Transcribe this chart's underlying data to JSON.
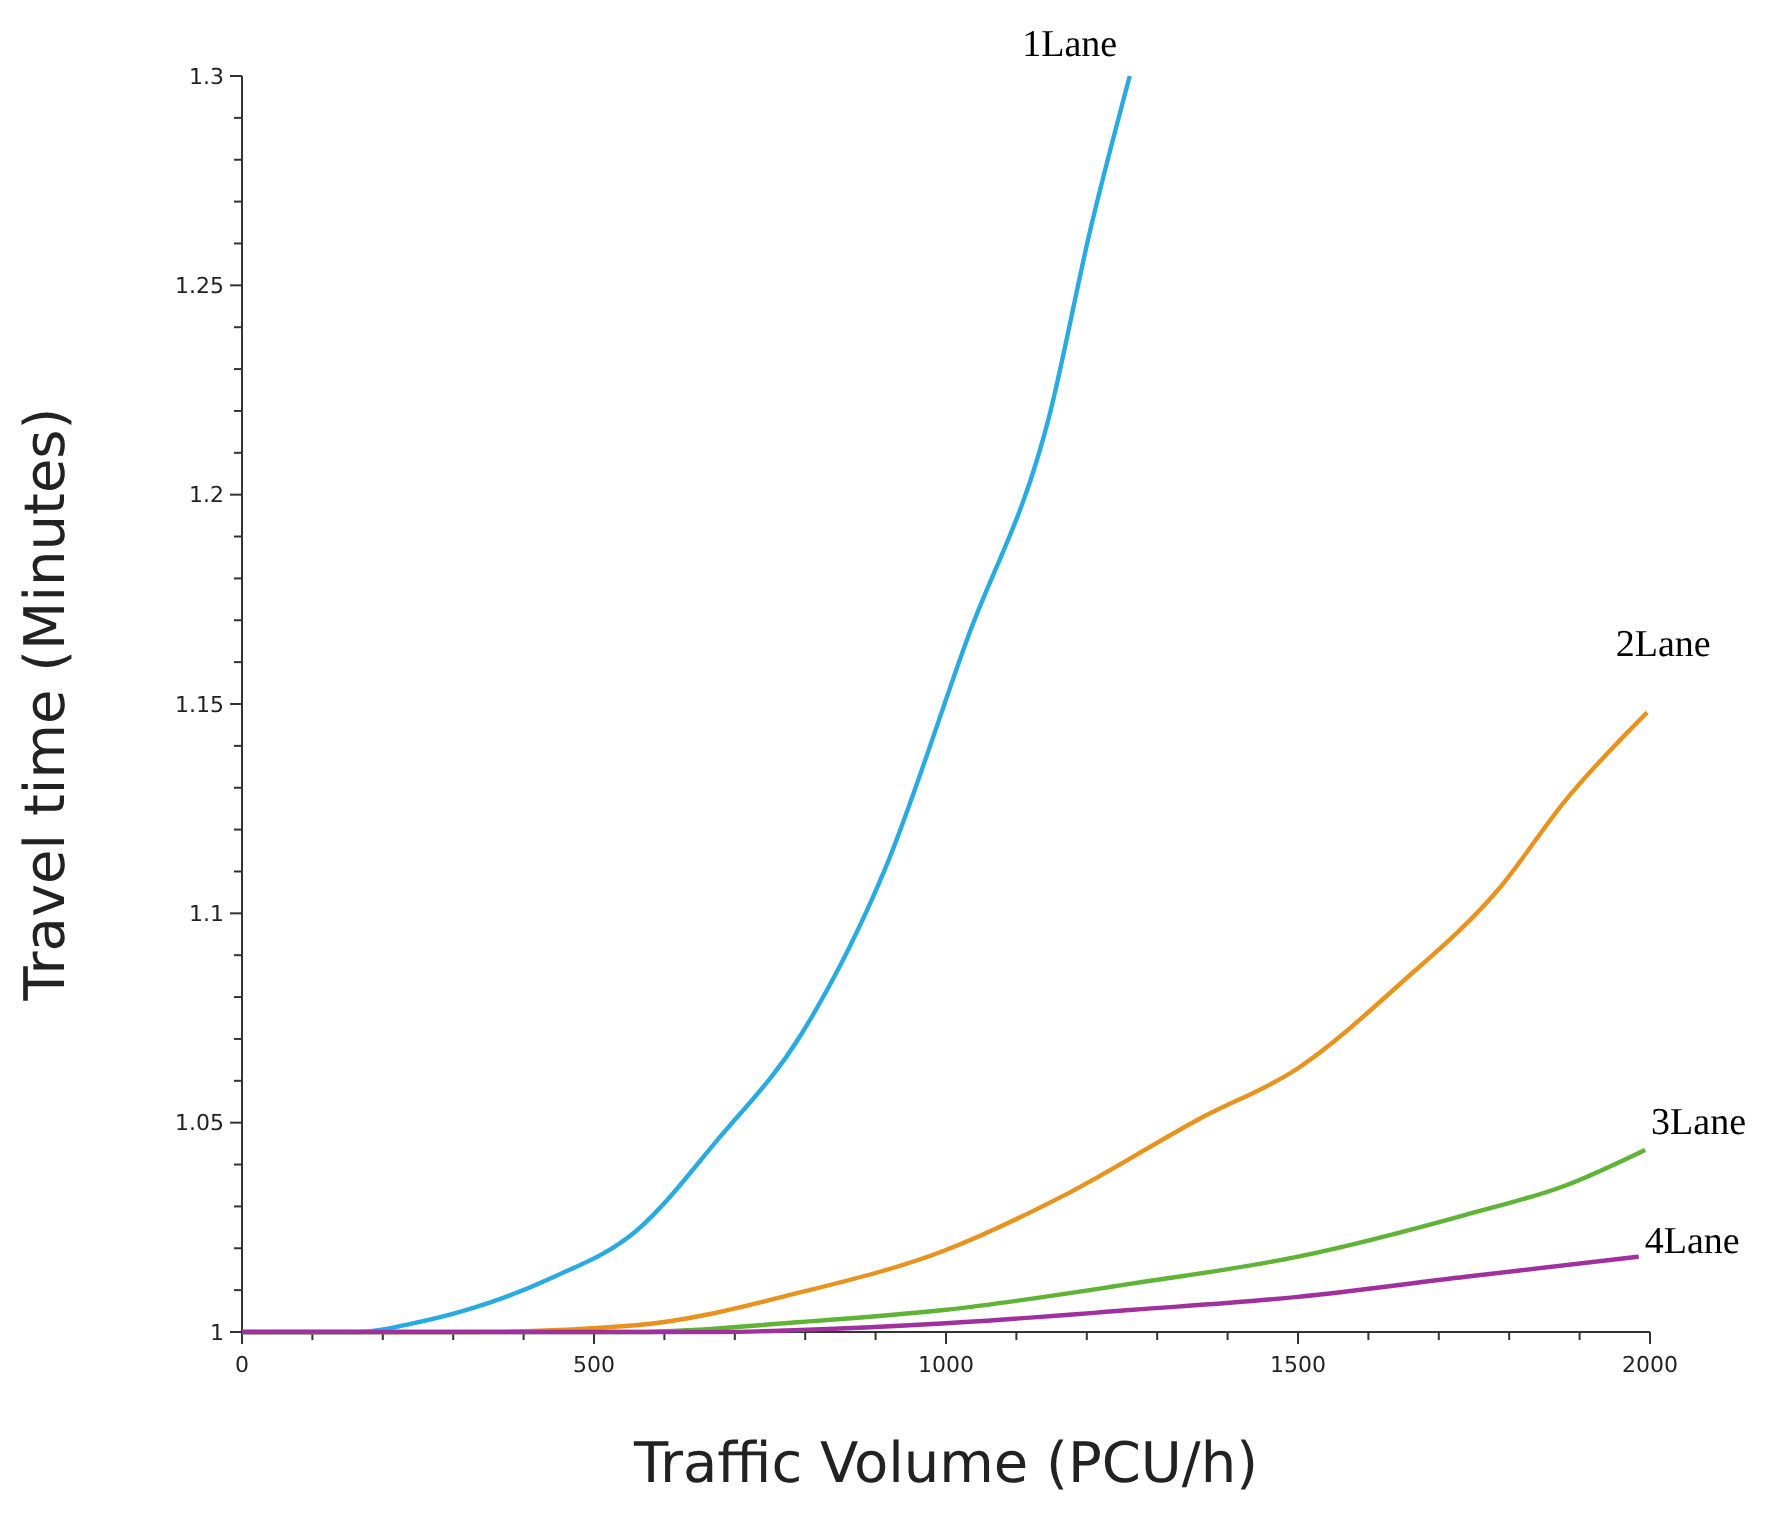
{
  "chart_data": {
    "type": "line",
    "xlabel": "Traffic Volume (PCU/h)",
    "ylabel": "Travel time (Minutes)",
    "xlim": [
      0,
      2000
    ],
    "ylim": [
      1,
      1.3
    ],
    "xticks": [
      0,
      {
        "value": 100,
        "label": null
      },
      {
        "value": 200,
        "label": null
      },
      {
        "value": 300,
        "label": null
      },
      {
        "value": 400,
        "label": null
      },
      500,
      {
        "value": 600,
        "label": null
      },
      {
        "value": 700,
        "label": null
      },
      {
        "value": 800,
        "label": null
      },
      {
        "value": 900,
        "label": null
      },
      1000,
      {
        "value": 1100,
        "label": null
      },
      {
        "value": 1200,
        "label": null
      },
      {
        "value": 1300,
        "label": null
      },
      {
        "value": 1400,
        "label": null
      },
      1500,
      {
        "value": 1600,
        "label": null
      },
      {
        "value": 1700,
        "label": null
      },
      {
        "value": 1800,
        "label": null
      },
      {
        "value": 1900,
        "label": null
      },
      2000
    ],
    "yticks": [
      1,
      {
        "value": 1.01,
        "label": null
      },
      {
        "value": 1.02,
        "label": null
      },
      {
        "value": 1.03,
        "label": null
      },
      {
        "value": 1.04,
        "label": null
      },
      1.05,
      {
        "value": 1.06,
        "label": null
      },
      {
        "value": 1.07,
        "label": null
      },
      {
        "value": 1.08,
        "label": null
      },
      {
        "value": 1.09,
        "label": null
      },
      1.1,
      {
        "value": 1.11,
        "label": null
      },
      {
        "value": 1.12,
        "label": null
      },
      {
        "value": 1.13,
        "label": null
      },
      {
        "value": 1.14,
        "label": null
      },
      1.15,
      {
        "value": 1.16,
        "label": null
      },
      {
        "value": 1.17,
        "label": null
      },
      {
        "value": 1.18,
        "label": null
      },
      {
        "value": 1.19,
        "label": null
      },
      1.2,
      {
        "value": 1.21,
        "label": null
      },
      {
        "value": 1.22,
        "label": null
      },
      {
        "value": 1.23,
        "label": null
      },
      {
        "value": 1.24,
        "label": null
      },
      1.25,
      {
        "value": 1.26,
        "label": null
      },
      {
        "value": 1.27,
        "label": null
      },
      {
        "value": 1.28,
        "label": null
      },
      {
        "value": 1.29,
        "label": null
      },
      1.3
    ],
    "grid": false,
    "marker": "none",
    "line_style": "solid",
    "series": [
      {
        "name": "1Lane",
        "color": "#29abe2",
        "x": [
          0,
          165,
          241,
          324,
          441,
          559,
          676,
          794,
          912,
          1029,
          1147,
          1206,
          1261
        ],
        "values": [
          1,
          1,
          1.002,
          1.0055,
          1.013,
          1.024,
          1.046,
          1.071,
          1.11,
          1.165,
          1.219,
          1.264,
          1.3
        ]
      },
      {
        "name": "2Lane",
        "color": "#e8931e",
        "x": [
          0,
          324,
          559,
          794,
          1000,
          1172,
          1361,
          1500,
          1644,
          1786,
          1880,
          1996
        ],
        "values": [
          1,
          1,
          1.0016,
          1.0095,
          1.0196,
          1.033,
          1.051,
          1.063,
          1.083,
          1.106,
          1.127,
          1.148
        ]
      },
      {
        "name": "3Lane",
        "color": "#5fb336",
        "x": [
          0,
          559,
          794,
          1000,
          1266,
          1500,
          1738,
          1880,
          1993
        ],
        "values": [
          1,
          1,
          1.0024,
          1.0053,
          1.0116,
          1.018,
          1.028,
          1.035,
          1.0435
        ]
      },
      {
        "name": "4Lane",
        "color": "#a0309e",
        "x": [
          0,
          676,
          794,
          1000,
          1266,
          1500,
          1738,
          1984
        ],
        "values": [
          1,
          1,
          1.0005,
          1.0021,
          1.0053,
          1.0084,
          1.0132,
          1.018
        ]
      }
    ]
  }
}
